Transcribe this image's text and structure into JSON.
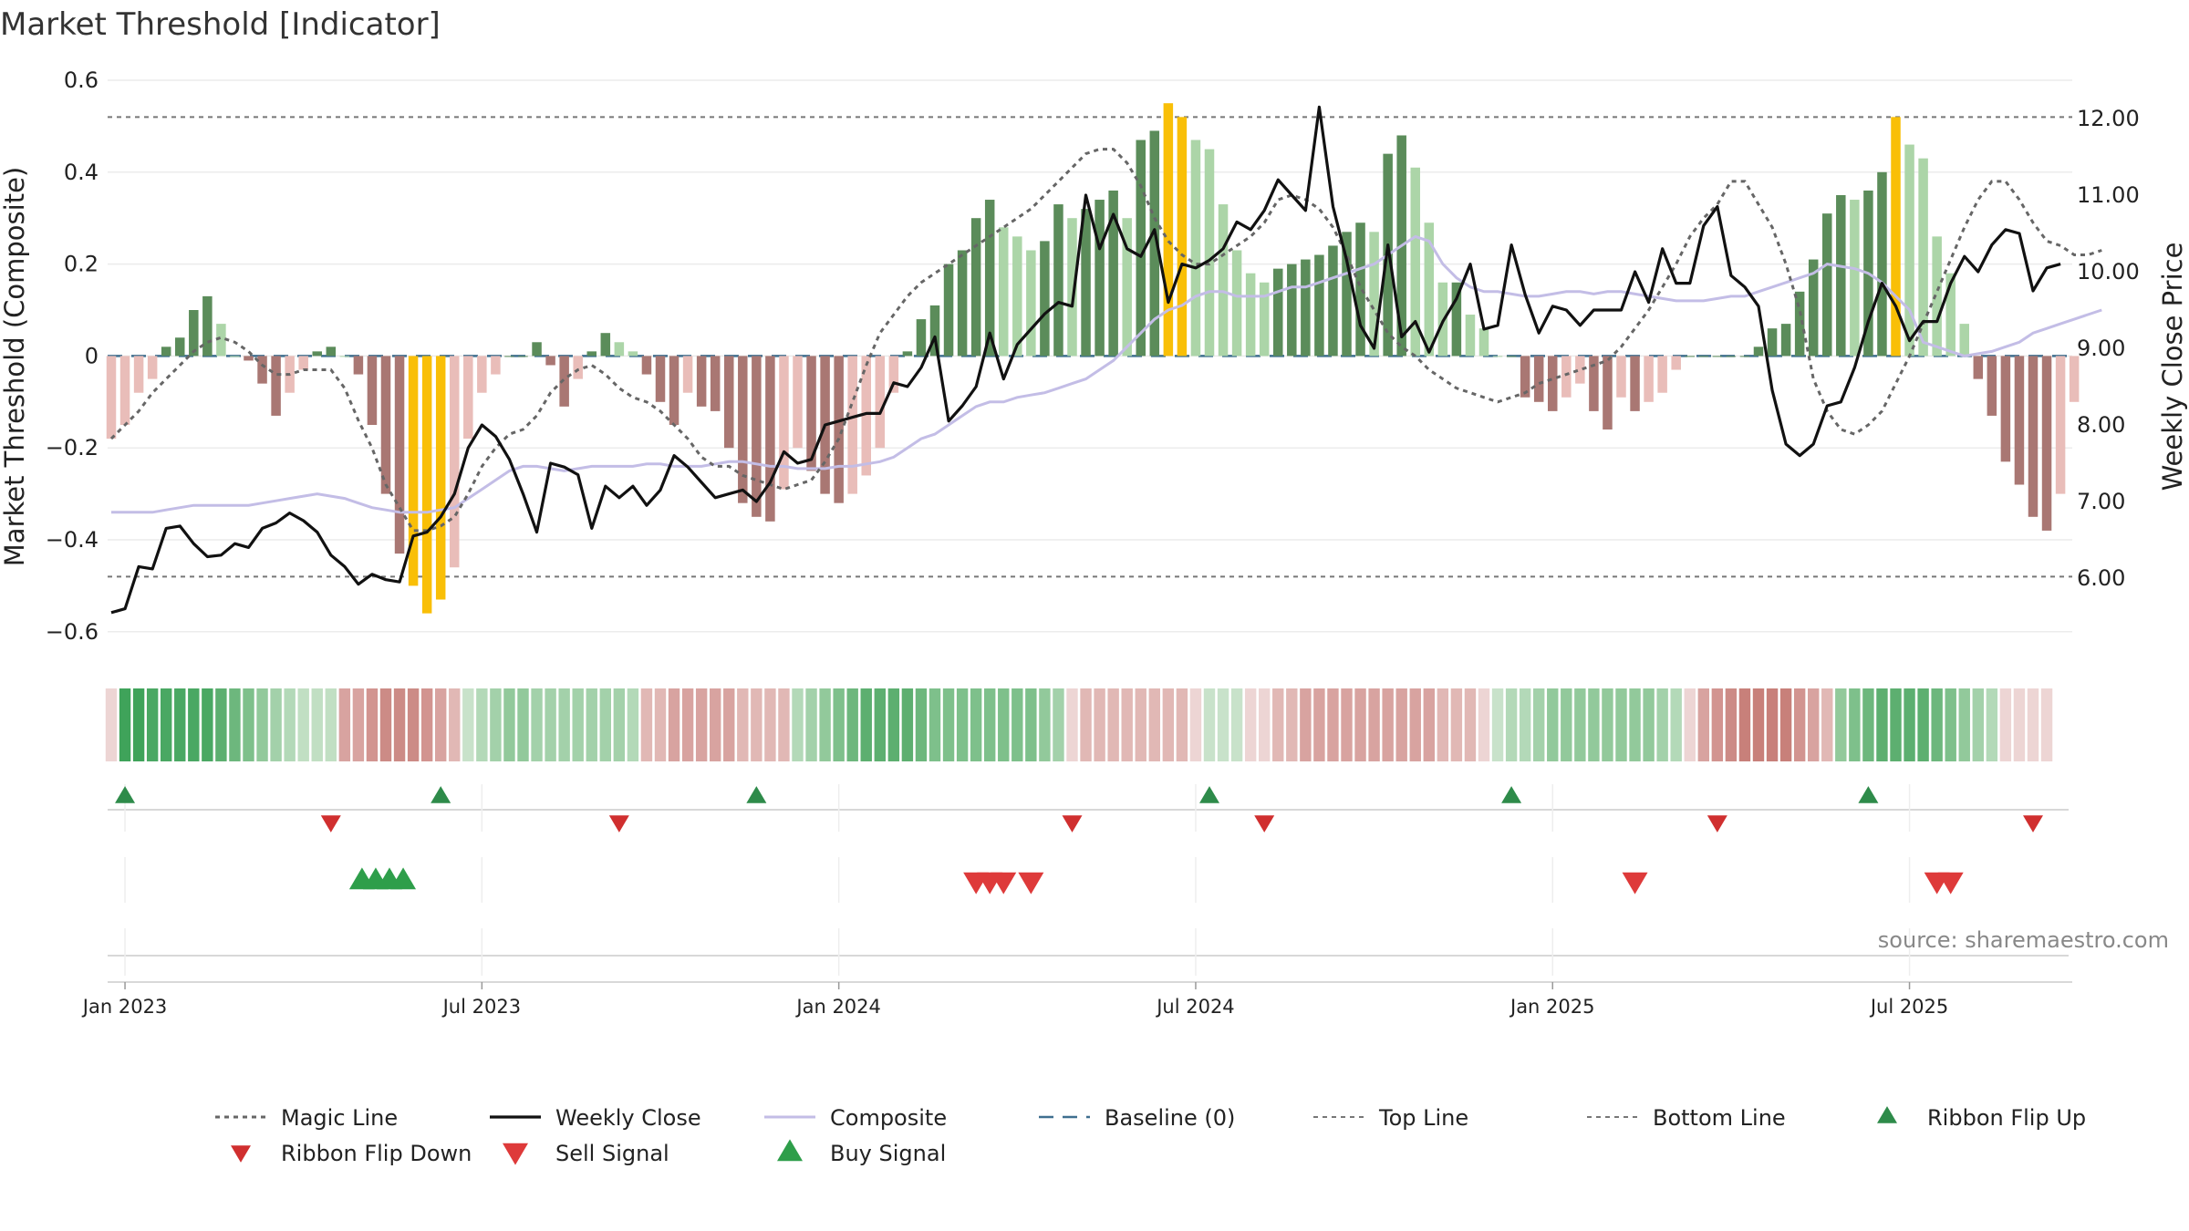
{
  "chart_data": {
    "type": "bar",
    "title": "Market Threshold [Indicator]",
    "ylabel_left": "Market Threshold (Composite)",
    "ylabel_right": "Weekly Close Price",
    "ylim_left": [
      -0.65,
      0.6
    ],
    "ylim_right": [
      5.0,
      12.5
    ],
    "yticks_left": [
      {
        "value": 0.6,
        "label": "0.6"
      },
      {
        "value": 0.4,
        "label": "0.4"
      },
      {
        "value": 0.2,
        "label": "0.2"
      },
      {
        "value": 0,
        "label": "0"
      },
      {
        "value": -0.2,
        "label": "−0.2"
      },
      {
        "value": -0.4,
        "label": "−0.4"
      },
      {
        "value": -0.6,
        "label": "−0.6"
      }
    ],
    "yticks_right": [
      {
        "value": 12,
        "label": "12.00"
      },
      {
        "value": 11,
        "label": "11.00"
      },
      {
        "value": 10,
        "label": "10.00"
      },
      {
        "value": 9,
        "label": "9.00"
      },
      {
        "value": 8,
        "label": "8.00"
      },
      {
        "value": 7,
        "label": "7.00"
      },
      {
        "value": 6,
        "label": "6.00"
      }
    ],
    "week_range": [
      0,
      143
    ],
    "x_ticks": [
      {
        "week": 1,
        "label": "Jan 2023"
      },
      {
        "week": 27,
        "label": "Jul 2023"
      },
      {
        "week": 53,
        "label": "Jan 2024"
      },
      {
        "week": 79,
        "label": "Jul 2024"
      },
      {
        "week": 105,
        "label": "Jan 2025"
      },
      {
        "week": 131,
        "label": "Jul 2025"
      }
    ],
    "top_line": 0.52,
    "bottom_line": -0.48,
    "baseline": 0,
    "composite_bars": [
      -0.18,
      -0.15,
      -0.08,
      -0.05,
      0.02,
      0.04,
      0.1,
      0.13,
      0.07,
      0.0,
      -0.01,
      -0.06,
      -0.13,
      -0.08,
      -0.03,
      0.01,
      0.02,
      0.0,
      -0.04,
      -0.15,
      -0.3,
      -0.43,
      -0.5,
      -0.56,
      -0.53,
      -0.46,
      -0.18,
      -0.08,
      -0.04,
      0.0,
      0.0,
      0.03,
      -0.02,
      -0.11,
      -0.05,
      0.01,
      0.05,
      0.03,
      0.01,
      -0.04,
      -0.1,
      -0.15,
      -0.08,
      -0.11,
      -0.12,
      -0.2,
      -0.32,
      -0.35,
      -0.36,
      -0.29,
      -0.2,
      -0.25,
      -0.3,
      -0.32,
      -0.3,
      -0.26,
      -0.2,
      -0.08,
      0.01,
      0.08,
      0.11,
      0.2,
      0.23,
      0.3,
      0.34,
      0.28,
      0.26,
      0.23,
      0.25,
      0.33,
      0.3,
      0.32,
      0.34,
      0.36,
      0.3,
      0.47,
      0.49,
      0.55,
      0.52,
      0.47,
      0.45,
      0.33,
      0.23,
      0.18,
      0.16,
      0.19,
      0.2,
      0.21,
      0.22,
      0.24,
      0.27,
      0.29,
      0.27,
      0.44,
      0.48,
      0.41,
      0.29,
      0.16,
      0.16,
      0.09,
      0.06,
      0.0,
      0.0,
      -0.09,
      -0.1,
      -0.12,
      -0.09,
      -0.06,
      -0.12,
      -0.16,
      -0.09,
      -0.12,
      -0.1,
      -0.08,
      -0.03,
      0.0,
      0.0,
      0.0,
      0.0,
      0.0,
      0.02,
      0.06,
      0.07,
      0.14,
      0.21,
      0.31,
      0.35,
      0.34,
      0.36,
      0.4,
      0.52,
      0.46,
      0.43,
      0.26,
      0.18,
      0.07,
      -0.05,
      -0.13,
      -0.23,
      -0.28,
      -0.35,
      -0.38,
      -0.3,
      -0.1
    ],
    "composite_line": [
      -0.34,
      -0.34,
      -0.34,
      -0.34,
      -0.335,
      -0.33,
      -0.325,
      -0.325,
      -0.325,
      -0.325,
      -0.325,
      -0.32,
      -0.315,
      -0.31,
      -0.305,
      -0.3,
      -0.305,
      -0.31,
      -0.32,
      -0.33,
      -0.335,
      -0.34,
      -0.34,
      -0.34,
      -0.335,
      -0.33,
      -0.31,
      -0.29,
      -0.27,
      -0.25,
      -0.24,
      -0.24,
      -0.245,
      -0.25,
      -0.245,
      -0.24,
      -0.24,
      -0.24,
      -0.24,
      -0.235,
      -0.235,
      -0.24,
      -0.24,
      -0.24,
      -0.235,
      -0.23,
      -0.23,
      -0.235,
      -0.24,
      -0.24,
      -0.245,
      -0.245,
      -0.245,
      -0.24,
      -0.24,
      -0.235,
      -0.23,
      -0.22,
      -0.2,
      -0.18,
      -0.17,
      -0.15,
      -0.13,
      -0.11,
      -0.1,
      -0.1,
      -0.09,
      -0.085,
      -0.08,
      -0.07,
      -0.06,
      -0.05,
      -0.03,
      -0.01,
      0.02,
      0.05,
      0.08,
      0.1,
      0.11,
      0.13,
      0.14,
      0.14,
      0.13,
      0.13,
      0.13,
      0.14,
      0.15,
      0.15,
      0.16,
      0.17,
      0.18,
      0.19,
      0.2,
      0.22,
      0.24,
      0.26,
      0.25,
      0.2,
      0.17,
      0.15,
      0.14,
      0.14,
      0.135,
      0.13,
      0.13,
      0.135,
      0.14,
      0.14,
      0.135,
      0.14,
      0.14,
      0.135,
      0.13,
      0.125,
      0.12,
      0.12,
      0.12,
      0.125,
      0.13,
      0.13,
      0.14,
      0.15,
      0.16,
      0.17,
      0.18,
      0.2,
      0.195,
      0.19,
      0.18,
      0.16,
      0.13,
      0.1,
      0.03,
      0.02,
      0.01,
      0.0,
      0.005,
      0.01,
      0.02,
      0.03,
      0.05,
      0.06,
      0.07,
      0.08,
      0.09,
      0.1
    ],
    "magic_line": [
      -0.18,
      -0.15,
      -0.12,
      -0.08,
      -0.05,
      -0.02,
      0.01,
      0.03,
      0.04,
      0.03,
      0.01,
      -0.02,
      -0.04,
      -0.04,
      -0.03,
      -0.03,
      -0.03,
      -0.07,
      -0.14,
      -0.2,
      -0.28,
      -0.33,
      -0.38,
      -0.38,
      -0.37,
      -0.35,
      -0.3,
      -0.24,
      -0.2,
      -0.17,
      -0.16,
      -0.13,
      -0.08,
      -0.05,
      -0.03,
      -0.02,
      -0.04,
      -0.07,
      -0.09,
      -0.1,
      -0.12,
      -0.15,
      -0.18,
      -0.22,
      -0.24,
      -0.24,
      -0.26,
      -0.27,
      -0.28,
      -0.29,
      -0.28,
      -0.27,
      -0.23,
      -0.18,
      -0.1,
      -0.02,
      0.05,
      0.09,
      0.13,
      0.16,
      0.18,
      0.2,
      0.22,
      0.24,
      0.26,
      0.28,
      0.3,
      0.32,
      0.35,
      0.38,
      0.41,
      0.44,
      0.45,
      0.45,
      0.42,
      0.37,
      0.3,
      0.25,
      0.22,
      0.2,
      0.2,
      0.22,
      0.24,
      0.26,
      0.29,
      0.34,
      0.35,
      0.34,
      0.32,
      0.28,
      0.22,
      0.15,
      0.1,
      0.05,
      0.02,
      0.0,
      -0.03,
      -0.05,
      -0.07,
      -0.08,
      -0.09,
      -0.1,
      -0.09,
      -0.08,
      -0.06,
      -0.05,
      -0.04,
      -0.03,
      -0.02,
      -0.01,
      0.02,
      0.06,
      0.1,
      0.15,
      0.2,
      0.26,
      0.3,
      0.33,
      0.38,
      0.38,
      0.33,
      0.28,
      0.2,
      0.1,
      -0.05,
      -0.12,
      -0.16,
      -0.17,
      -0.15,
      -0.12,
      -0.06,
      0.0,
      0.07,
      0.14,
      0.21,
      0.28,
      0.34,
      0.38,
      0.38,
      0.34,
      0.29,
      0.25,
      0.24,
      0.22,
      0.22,
      0.23
    ],
    "weekly_close": [
      5.55,
      5.6,
      6.15,
      6.12,
      6.65,
      6.68,
      6.45,
      6.28,
      6.3,
      6.45,
      6.4,
      6.65,
      6.72,
      6.85,
      6.75,
      6.6,
      6.3,
      6.15,
      5.92,
      6.05,
      5.98,
      5.95,
      6.55,
      6.6,
      6.8,
      7.1,
      7.7,
      8.0,
      7.85,
      7.55,
      7.1,
      6.6,
      7.5,
      7.45,
      7.35,
      6.65,
      7.2,
      7.05,
      7.2,
      6.95,
      7.15,
      7.6,
      7.45,
      7.25,
      7.05,
      7.1,
      7.15,
      7.0,
      7.25,
      7.65,
      7.5,
      7.55,
      8.0,
      8.05,
      8.1,
      8.15,
      8.15,
      8.55,
      8.5,
      8.75,
      9.15,
      8.05,
      8.25,
      8.5,
      9.2,
      8.6,
      9.05,
      9.25,
      9.45,
      9.6,
      9.55,
      11.0,
      10.3,
      10.75,
      10.3,
      10.2,
      10.55,
      9.6,
      10.1,
      10.05,
      10.15,
      10.3,
      10.65,
      10.55,
      10.8,
      11.2,
      11.0,
      10.8,
      12.15,
      10.85,
      10.15,
      9.3,
      9.0,
      10.35,
      9.15,
      9.35,
      8.95,
      9.35,
      9.65,
      10.1,
      9.25,
      9.3,
      10.35,
      9.7,
      9.2,
      9.55,
      9.5,
      9.3,
      9.5,
      9.5,
      9.5,
      10.0,
      9.6,
      10.3,
      9.85,
      9.85,
      10.6,
      10.85,
      9.95,
      9.8,
      9.55,
      8.45,
      7.75,
      7.6,
      7.75,
      8.25,
      8.3,
      8.75,
      9.35,
      9.85,
      9.55,
      9.1,
      9.35,
      9.35,
      9.85,
      10.2,
      10.0,
      10.35,
      10.55,
      10.5,
      9.75,
      10.05,
      10.1
    ],
    "ribbon_colors": [
      "#edd5d4",
      "#3fa35a",
      "#3fa35a",
      "#4aa863",
      "#4aa863",
      "#4aa863",
      "#4aa863",
      "#4aa863",
      "#5daf70",
      "#6db77d",
      "#7ec08b",
      "#92c99b",
      "#a3d1aa",
      "#b3d9b8",
      "#c1dfc3",
      "#c1dfc3",
      "#c1dfc3",
      "#d8a3a0",
      "#d8a3a0",
      "#d29490",
      "#cc8b86",
      "#cc8b86",
      "#cc8b86",
      "#d29490",
      "#d8a3a0",
      "#e1b8b5",
      "#c8e2ca",
      "#b3d9b8",
      "#a3d1aa",
      "#92c99b",
      "#92c99b",
      "#a3d1aa",
      "#a3d1aa",
      "#a3d1aa",
      "#a3d1aa",
      "#a3d1aa",
      "#a3d1aa",
      "#a3d1aa",
      "#b3d9b8",
      "#e1b8b5",
      "#e1b8b5",
      "#d8a3a0",
      "#d8a3a0",
      "#d8a3a0",
      "#d8a3a0",
      "#d8a3a0",
      "#e1b8b5",
      "#e1b8b5",
      "#e1b8b5",
      "#e1b8b5",
      "#b3d9b8",
      "#a3d1aa",
      "#92c99b",
      "#7ec08b",
      "#6db77d",
      "#5daf70",
      "#5daf70",
      "#5daf70",
      "#5daf70",
      "#6db77d",
      "#7ec08b",
      "#7ec08b",
      "#7ec08b",
      "#7ec08b",
      "#7ec08b",
      "#7ec08b",
      "#7ec08b",
      "#7ec08b",
      "#92c99b",
      "#a3d1aa",
      "#edd5d4",
      "#e1b8b5",
      "#e1b8b5",
      "#e1b8b5",
      "#e1b8b5",
      "#e1b8b5",
      "#e1b8b5",
      "#e1b8b5",
      "#e1b8b5",
      "#edd5d4",
      "#c8e2ca",
      "#c8e2ca",
      "#c8e2ca",
      "#edd5d4",
      "#edd5d4",
      "#e1b8b5",
      "#e1b8b5",
      "#d8a3a0",
      "#d8a3a0",
      "#d8a3a0",
      "#d8a3a0",
      "#d8a3a0",
      "#d8a3a0",
      "#d8a3a0",
      "#d8a3a0",
      "#d8a3a0",
      "#d8a3a0",
      "#e1b8b5",
      "#e1b8b5",
      "#e1b8b5",
      "#edd5d4",
      "#c8e2ca",
      "#b3d9b8",
      "#b3d9b8",
      "#a3d1aa",
      "#92c99b",
      "#92c99b",
      "#92c99b",
      "#92c99b",
      "#92c99b",
      "#92c99b",
      "#92c99b",
      "#92c99b",
      "#a3d1aa",
      "#b3d9b8",
      "#edd5d4",
      "#d8a3a0",
      "#d29490",
      "#cc8b86",
      "#c8807a",
      "#c8807a",
      "#c8807a",
      "#c8807a",
      "#d29490",
      "#d8a3a0",
      "#e1b8b5",
      "#92c99b",
      "#7ec08b",
      "#6db77d",
      "#5daf70",
      "#5daf70",
      "#5daf70",
      "#5daf70",
      "#6db77d",
      "#7ec08b",
      "#92c99b",
      "#a3d1aa",
      "#b3d9b8",
      "#edd5d4",
      "#edd5d4",
      "#edd5d4",
      "#edd5d4"
    ],
    "ribbon_flip_up": [
      1,
      24,
      47,
      80,
      102,
      128
    ],
    "ribbon_flip_down": [
      16,
      37,
      70,
      84,
      117,
      140
    ],
    "buy_signal": [
      18,
      19,
      20,
      21
    ],
    "sell_signal": [
      63,
      64,
      65,
      67,
      111,
      133,
      134
    ],
    "legend": [
      "Magic Line",
      "Weekly Close",
      "Composite",
      "Baseline (0)",
      "Top Line",
      "Bottom Line",
      "Ribbon Flip Up",
      "Ribbon Flip Down",
      "Sell Signal",
      "Buy Signal"
    ],
    "colors": {
      "bar_pos_strong": "#5b8c5a",
      "bar_pos_weak": "#acd5a8",
      "bar_neg_strong": "#a97773",
      "bar_neg_weak": "#e9bdb9",
      "bar_extreme": "#f9bf07",
      "weekly_close": "#111111",
      "composite_line": "#c3bde6",
      "magic_line": "#666666",
      "baseline": "#3f6f8f",
      "threshold_lines": "#777777",
      "ribbon_up": "#2e8b4a",
      "ribbon_down": "#d02f2f",
      "buy": "#2e9e4a",
      "sell": "#de3a3a"
    }
  },
  "source": "source: sharemaestro.com"
}
